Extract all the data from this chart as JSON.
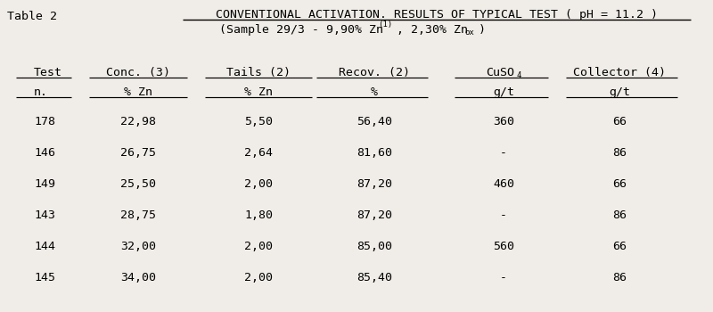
{
  "table_label": "Table 2",
  "title_line1": "CONVENTIONAL ACTIVATION. RESULTS OF TYPICAL TEST ( pH = 11.2 )",
  "col_header_line1": [
    "Test",
    "Conc. (3)",
    "Tails (2)",
    "Recov. (2)",
    "CuSO4",
    "Collector (4)"
  ],
  "col_header_line2": [
    "n.",
    "% Zn",
    "% Zn",
    "%",
    "g/t",
    "g/t"
  ],
  "rows": [
    [
      "178",
      "22,98",
      "5,50",
      "56,40",
      "360",
      "66"
    ],
    [
      "146",
      "26,75",
      "2,64",
      "81,60",
      "-",
      "86"
    ],
    [
      "149",
      "25,50",
      "2,00",
      "87,20",
      "460",
      "66"
    ],
    [
      "143",
      "28,75",
      "1,80",
      "87,20",
      "-",
      "86"
    ],
    [
      "144",
      "32,00",
      "2,00",
      "85,00",
      "560",
      "66"
    ],
    [
      "145",
      "34,00",
      "2,00",
      "85,40",
      "-",
      "86"
    ]
  ],
  "bg_color": "#f0ede8",
  "font_size": 9.5,
  "title_fontsize": 9.5
}
